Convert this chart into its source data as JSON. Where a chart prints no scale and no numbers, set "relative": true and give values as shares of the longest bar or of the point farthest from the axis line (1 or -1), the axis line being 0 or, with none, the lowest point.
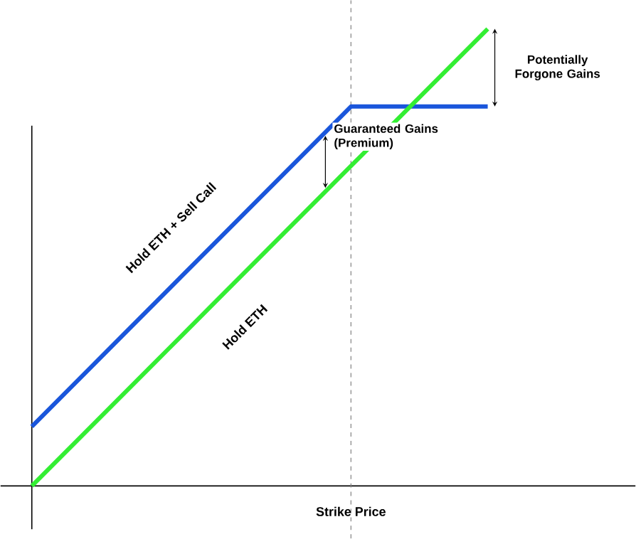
{
  "chart_data": {
    "type": "line",
    "relative": true,
    "xlabel": "Strike Price",
    "categories": [
      null,
      null,
      null,
      null,
      null,
      null,
      null,
      null,
      null,
      null,
      null
    ],
    "series": [
      {
        "name": "Hold ETH + Sell Call",
        "color": "#1a56db",
        "values": [
          0.13,
          0.23,
          0.33,
          0.43,
          0.53,
          0.63,
          0.73,
          0.83,
          0.83,
          0.83,
          0.83
        ]
      },
      {
        "name": "Hold ETH",
        "color": "#33ee33",
        "values": [
          0,
          0.1,
          0.2,
          0.3,
          0.4,
          0.5,
          0.6,
          0.7,
          0.8,
          0.9,
          1.0
        ]
      }
    ],
    "annotations": [
      "Potentially Forgone Gains",
      "Guaranteed Gains (Premium)"
    ]
  }
}
